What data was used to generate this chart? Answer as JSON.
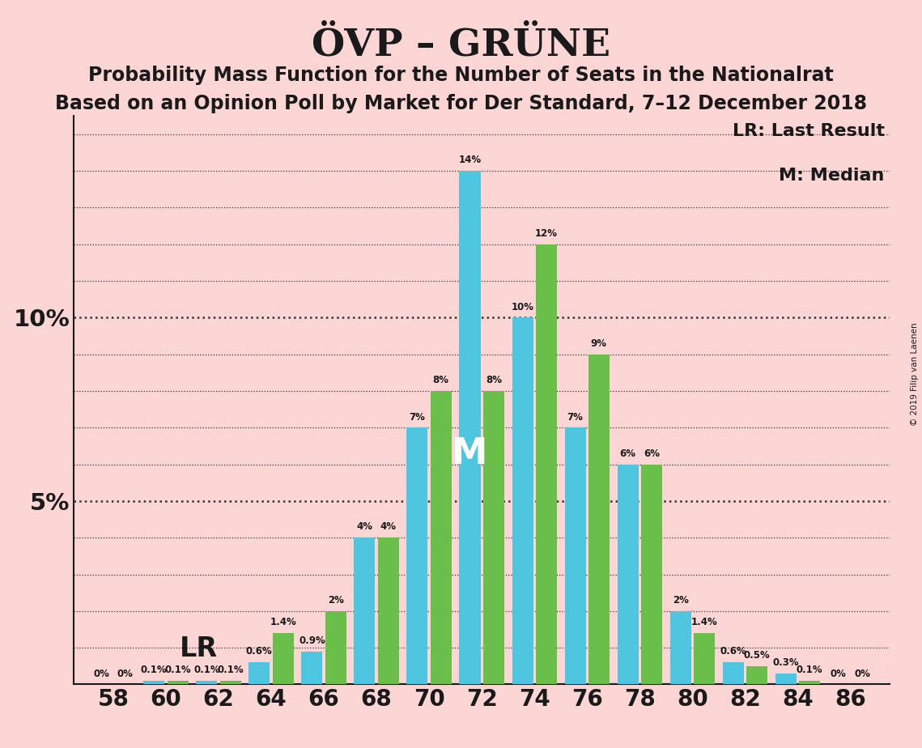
{
  "title": "ÖVP – GRÜNE",
  "subtitle1": "Probability Mass Function for the Number of Seats in the Nationalrat",
  "subtitle2": "Based on an Opinion Poll by Market for Der Standard, 7–12 December 2018",
  "legend_lr": "LR: Last Result",
  "legend_m": "M: Median",
  "copyright": "© 2019 Filip van Laenen",
  "green_color": "#6abf4b",
  "cyan_color": "#4ec6e0",
  "background_color": "#fcd5d5",
  "seats": [
    58,
    60,
    62,
    64,
    66,
    68,
    70,
    72,
    74,
    76,
    78,
    80,
    82,
    84,
    86
  ],
  "green_values": [
    0.0,
    0.1,
    0.1,
    1.4,
    2.0,
    4.0,
    8.0,
    8.0,
    12.0,
    9.0,
    6.0,
    1.4,
    0.5,
    0.1,
    0.0
  ],
  "cyan_values": [
    0.0,
    0.1,
    0.1,
    0.6,
    0.9,
    4.0,
    7.0,
    14.0,
    10.0,
    7.0,
    6.0,
    2.0,
    0.6,
    0.3,
    0.0
  ],
  "green_labels": [
    "0%",
    "0.1%",
    "0.1%",
    "1.4%",
    "2%",
    "4%",
    "8%",
    "8%",
    "12%",
    "9%",
    "6%",
    "1.4%",
    "0.5%",
    "0.1%",
    "0%"
  ],
  "cyan_labels": [
    "0%",
    "0.1%",
    "0.1%",
    "0.6%",
    "0.9%",
    "4%",
    "7%",
    "14%",
    "10%",
    "7%",
    "6%",
    "2%",
    "0.6%",
    "0.3%",
    "0%"
  ],
  "lr_seat": 62,
  "median_seat": 72,
  "extra_labels_left": {
    "58": "0%",
    "60": "0%"
  },
  "extra_labels_right": {
    "84": "0%",
    "86": "0%"
  }
}
